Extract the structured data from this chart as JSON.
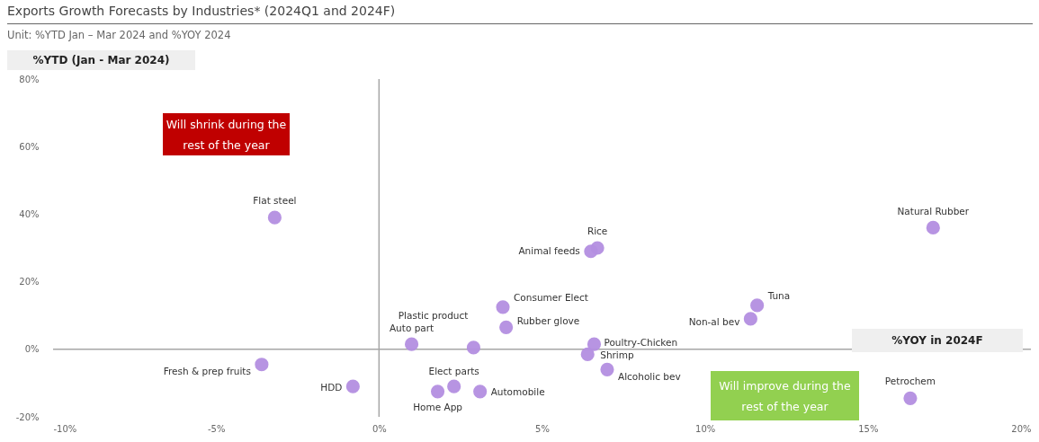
{
  "chart_data": {
    "type": "scatter",
    "title": "Exports Growth Forecasts by Industries* (2024Q1 and 2024F)",
    "subtitle": "Unit: %YTD Jan – Mar 2024 and %YOY 2024",
    "xlabel": "%YOY in 2024F",
    "ylabel": "%YTD (Jan -  Mar 2024)",
    "marker": "circle",
    "series": [
      {
        "color": "#b38ee0",
        "x": [
          -3.2,
          17.0,
          6.7,
          6.5,
          3.8,
          3.9,
          11.6,
          11.4,
          1.0,
          2.9,
          6.6,
          6.4,
          7.0,
          -3.6,
          -0.8,
          2.3,
          1.8,
          3.1,
          16.3
        ],
        "values": [
          39,
          36,
          30,
          29,
          12.5,
          6.5,
          13,
          9,
          1.5,
          0.5,
          1.5,
          -1.5,
          -6,
          -4.5,
          -11,
          -11,
          -12.5,
          -12.5,
          -14.5
        ]
      }
    ],
    "xlim": [
      -10,
      20
    ],
    "xticks": [
      {
        "value": -10,
        "label": "-10%"
      },
      {
        "value": -5,
        "label": "-5%"
      },
      {
        "value": 0,
        "label": "0%"
      },
      {
        "value": 5,
        "label": "5%"
      },
      {
        "value": 10,
        "label": "10%"
      },
      {
        "value": 15,
        "label": "15%"
      },
      {
        "value": 20,
        "label": "20%"
      }
    ],
    "ylim": [
      -20,
      80
    ],
    "yticks": [
      {
        "value": -20,
        "label": "-20%"
      },
      {
        "value": 0,
        "label": "0%"
      },
      {
        "value": 20,
        "label": "20%"
      },
      {
        "value": 40,
        "label": "40%"
      },
      {
        "value": 60,
        "label": "60%"
      },
      {
        "value": 80,
        "label": "80%"
      }
    ],
    "ref_lines": [
      {
        "axis": "x",
        "value": 0
      },
      {
        "axis": "y",
        "value": 0
      }
    ],
    "annotations": [
      "Will shrink during the rest of the year",
      "Will improve during the rest of the year",
      {
        "text": "Flat steel",
        "x": -3.2,
        "y": 39
      },
      {
        "text": "Natural Rubber",
        "x": 17.0,
        "y": 36
      },
      {
        "text": "Rice",
        "x": 6.7,
        "y": 30
      },
      {
        "text": "Animal feeds",
        "x": 6.5,
        "y": 29
      },
      {
        "text": "Consumer Elect",
        "x": 3.8,
        "y": 12.5
      },
      {
        "text": "Rubber glove",
        "x": 3.9,
        "y": 6.5
      },
      {
        "text": "Tuna",
        "x": 11.6,
        "y": 13
      },
      {
        "text": "Non-al bev",
        "x": 11.4,
        "y": 9
      },
      {
        "text": "Auto part",
        "x": 1.0,
        "y": 1.5
      },
      {
        "text": "Plastic product",
        "x": 2.9,
        "y": 0.5
      },
      {
        "text": "Poultry-Chicken",
        "x": 6.6,
        "y": 1.5
      },
      {
        "text": "Shrimp",
        "x": 6.4,
        "y": -1.5
      },
      {
        "text": "Alcoholic bev",
        "x": 7.0,
        "y": -6
      },
      {
        "text": "Fresh & prep fruits",
        "x": -3.6,
        "y": -4.5
      },
      {
        "text": "HDD",
        "x": -0.8,
        "y": -11
      },
      {
        "text": "Elect parts",
        "x": 2.3,
        "y": -11
      },
      {
        "text": "Home App",
        "x": 1.8,
        "y": -12.5
      },
      {
        "text": "Automobile",
        "x": 3.1,
        "y": -12.5
      },
      {
        "text": "Petrochem",
        "x": 16.3,
        "y": -14.5
      }
    ]
  }
}
